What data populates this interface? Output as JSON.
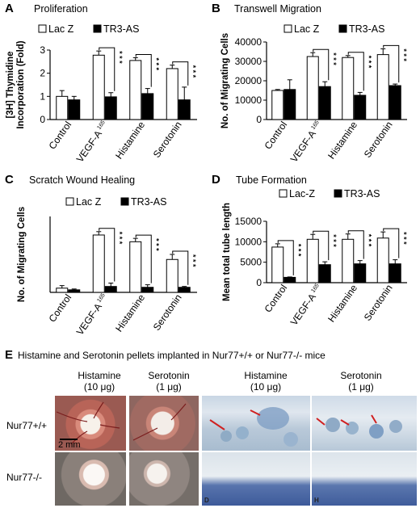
{
  "panels": [
    {
      "letter": "A",
      "title": "Proliferation"
    },
    {
      "letter": "B",
      "title": "Transwell Migration"
    },
    {
      "letter": "C",
      "title": "Scratch Wound Healing"
    },
    {
      "letter": "D",
      "title": "Tube Formation"
    }
  ],
  "chart_data": [
    {
      "type": "bar",
      "title": "Proliferation",
      "ylabel": "[3H] Thymidine Incorporation (Fold)",
      "ylim": [
        0,
        3
      ],
      "yticks": [
        "0",
        "1",
        "2",
        "3"
      ],
      "categories": [
        "Control",
        "VEGF-A 165",
        "Histamine",
        "Serotonin"
      ],
      "series": [
        {
          "name": "Lac Z",
          "color": "#ffffff",
          "values": [
            1.0,
            2.78,
            2.55,
            2.2
          ],
          "errors": [
            0.25,
            0.18,
            0.12,
            0.15
          ]
        },
        {
          "name": "TR3-AS",
          "color": "#000000",
          "values": [
            0.85,
            0.98,
            1.12,
            0.85
          ],
          "errors": [
            0.15,
            0.18,
            0.22,
            0.55
          ]
        }
      ],
      "significance": [
        "",
        "* * *",
        "* * *",
        "* * *"
      ]
    },
    {
      "type": "bar",
      "title": "Transwell Migration",
      "ylabel": "No. of Migrating Cells",
      "ylim": [
        0,
        40000
      ],
      "yticks": [
        "0",
        "10000",
        "20000",
        "30000",
        "40000"
      ],
      "categories": [
        "Control",
        "VEGF-A 165",
        "Histamine",
        "Serotonin"
      ],
      "series": [
        {
          "name": "Lac Z",
          "color": "#ffffff",
          "values": [
            15000,
            32500,
            32000,
            33500
          ],
          "errors": [
            500,
            2000,
            1000,
            3000
          ]
        },
        {
          "name": "TR3-AS",
          "color": "#000000",
          "values": [
            15500,
            17000,
            12500,
            17500
          ],
          "errors": [
            5000,
            2500,
            1500,
            800
          ]
        }
      ],
      "significance": [
        "",
        "* * *",
        "* * *",
        "* * *"
      ]
    },
    {
      "type": "bar",
      "title": "Scratch Wound Healing",
      "ylabel": "No. of Migrating Cells",
      "ylim": [
        0,
        45
      ],
      "yticks": [],
      "categories": [
        "Control",
        "VEGF-A 165",
        "Histamine",
        "Serotonin"
      ],
      "series": [
        {
          "name": "Lac Z",
          "color": "#ffffff",
          "values": [
            2.5,
            34,
            30,
            19.5
          ],
          "errors": [
            1.5,
            2,
            2,
            3
          ]
        },
        {
          "name": "TR3-AS",
          "color": "#000000",
          "values": [
            1.5,
            3.5,
            3,
            3
          ],
          "errors": [
            0.5,
            2,
            1.5,
            0.5
          ]
        }
      ],
      "significance": [
        "",
        "* * *",
        "* * *",
        "* * *"
      ]
    },
    {
      "type": "bar",
      "title": "Tube Formation",
      "ylabel": "Mean total tube length",
      "ylim": [
        0,
        15000
      ],
      "yticks": [
        "0",
        "5000",
        "10000",
        "15000"
      ],
      "categories": [
        "Control",
        "VEGF-A 165",
        "Histamine",
        "Serotonin"
      ],
      "series": [
        {
          "name": "Lac-Z",
          "color": "#ffffff",
          "values": [
            8700,
            10600,
            10600,
            10900
          ],
          "errors": [
            800,
            1200,
            1300,
            1500
          ]
        },
        {
          "name": "TR3-AS",
          "color": "#000000",
          "values": [
            1300,
            4400,
            4600,
            4600
          ],
          "errors": [
            100,
            700,
            800,
            1000
          ]
        }
      ],
      "significance": [
        "* * *",
        "* * *",
        "* * *",
        "* * *"
      ]
    }
  ],
  "sectionE": {
    "letter": "E",
    "title": "Histamine and Serotonin pellets implanted in Nur77+/+ or Nur77-/- mice",
    "col_headers": [
      {
        "line1": "Histamine",
        "line2": "(10 μg)"
      },
      {
        "line1": "Serotonin",
        "line2": "(1 μg)"
      },
      {
        "line1": "Histamine",
        "line2": "(10 μg)"
      },
      {
        "line1": "Serotonin",
        "line2": "(1 μg)"
      }
    ],
    "row_headers": [
      "Nur77+/+",
      "Nur77-/-"
    ],
    "scalebar_label": "2 mm",
    "corner_letters": [
      "D",
      "H"
    ]
  }
}
